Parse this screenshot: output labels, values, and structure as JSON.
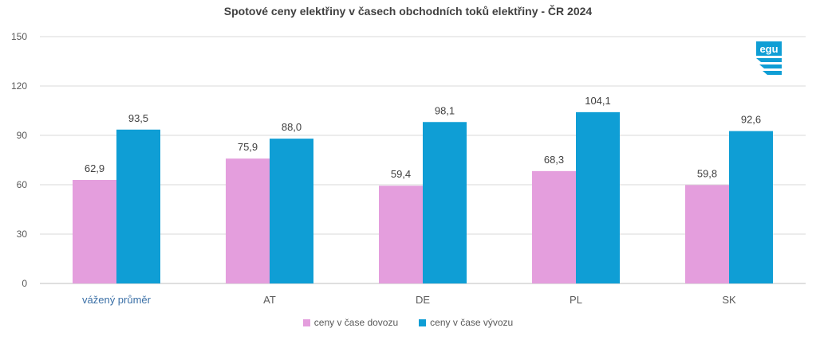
{
  "chart_data": {
    "type": "bar",
    "title": "Spotové ceny elektřiny v časech obchodních toků elektřiny - ČR 2024",
    "categories": [
      "vážený průměr",
      "AT",
      "DE",
      "PL",
      "SK"
    ],
    "series": [
      {
        "name": "ceny v čase dovozu",
        "values": [
          62.9,
          75.9,
          59.4,
          68.3,
          59.8
        ],
        "labels": [
          "62,9",
          "75,9",
          "59,4",
          "68,3",
          "59,8"
        ],
        "color": "#e49edd"
      },
      {
        "name": "ceny v čase vývozu",
        "values": [
          93.5,
          88.0,
          98.1,
          104.1,
          92.6
        ],
        "labels": [
          "93,5",
          "88,0",
          "98,1",
          "104,1",
          "92,6"
        ],
        "color": "#0f9ed5"
      }
    ],
    "yticks": [
      "0",
      "30",
      "60",
      "90",
      "120",
      "150"
    ],
    "ylim": [
      0,
      150
    ],
    "grid": true,
    "legend_position": "bottom",
    "category_label_colors": [
      "#3a6fa6",
      "#595959",
      "#595959",
      "#595959",
      "#595959"
    ]
  },
  "logo": {
    "text": "egu",
    "color": "#0f9ed5"
  }
}
